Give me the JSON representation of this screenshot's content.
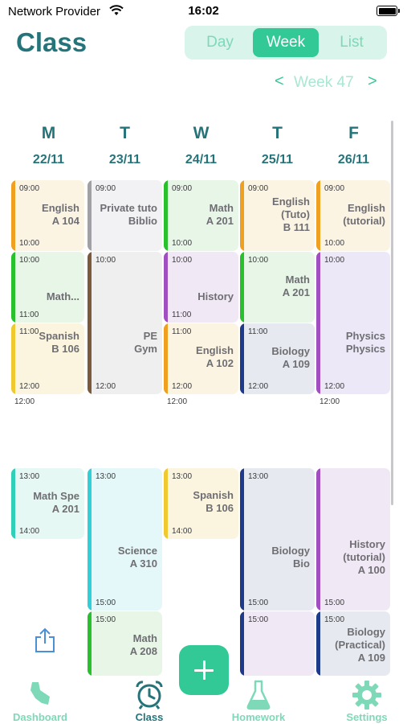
{
  "status": {
    "carrier": "Network Provider",
    "time": "16:02"
  },
  "header": {
    "title": "Class"
  },
  "segments": [
    {
      "label": "Day"
    },
    {
      "label": "Week"
    },
    {
      "label": "List"
    }
  ],
  "week_nav": {
    "prev": "<",
    "label": "Week 47",
    "next": ">"
  },
  "days": [
    {
      "letter": "M",
      "date": "22/11"
    },
    {
      "letter": "T",
      "date": "23/11"
    },
    {
      "letter": "W",
      "date": "24/11"
    },
    {
      "letter": "T",
      "date": "25/11"
    },
    {
      "letter": "F",
      "date": "26/11"
    }
  ],
  "events": [
    {
      "start": "09:00",
      "end": "10:00",
      "name": "English",
      "room": "A 104"
    },
    {
      "start": "10:00",
      "end": "11:00",
      "name": "Math...",
      "room": ""
    },
    {
      "start": "11:00",
      "end": "12:00",
      "name": "Spanish",
      "room": "B 106"
    },
    {
      "start": "13:00",
      "end": "14:00",
      "name": "Math Spe",
      "room": "A 201"
    },
    {
      "start": "09:00",
      "end": "",
      "name": "Private tuto",
      "room": "Biblio"
    },
    {
      "start": "10:00",
      "end": "12:00",
      "name": "PE",
      "room": "Gym"
    },
    {
      "start": "13:00",
      "end": "15:00",
      "name": "Science",
      "room": "A 310"
    },
    {
      "start": "15:00",
      "end": "",
      "name": "Math",
      "room": "A 208"
    },
    {
      "start": "09:00",
      "end": "10:00",
      "name": "Math",
      "room": "A 201"
    },
    {
      "start": "10:00",
      "end": "11:00",
      "name": "History",
      "room": ""
    },
    {
      "start": "11:00",
      "end": "12:00",
      "name": "English",
      "room": "A 102"
    },
    {
      "start": "13:00",
      "end": "14:00",
      "name": "Spanish",
      "room": "B 106"
    },
    {
      "start": "09:00",
      "end": "",
      "name": "English",
      "name2": "(Tuto)",
      "room": "B 111"
    },
    {
      "start": "10:00",
      "end": "",
      "name": "Math",
      "room": "A 201"
    },
    {
      "start": "11:00",
      "end": "12:00",
      "name": "Biology",
      "room": "A 109"
    },
    {
      "start": "13:00",
      "end": "15:00",
      "name": "Biology",
      "room": "Bio"
    },
    {
      "start": "15:00",
      "end": "",
      "name": "",
      "room": ""
    },
    {
      "start": "09:00",
      "end": "10:00",
      "name": "English",
      "room": "(tutorial)"
    },
    {
      "start": "10:00",
      "end": "12:00",
      "name": "Physics",
      "room": "Physics"
    },
    {
      "start": "",
      "end": "15:00",
      "name": "History",
      "name2": "(tutorial)",
      "room": "A 100"
    },
    {
      "start": "15:00",
      "end": "",
      "name": "Biology",
      "name2": "(Practical)",
      "room": "A 109"
    }
  ],
  "gap_labels": [
    "12:00",
    "12:00",
    "12:00"
  ],
  "tabs": [
    {
      "label": "Dashboard"
    },
    {
      "label": "Class"
    },
    {
      "label": "Homework"
    },
    {
      "label": "Settings"
    }
  ],
  "colors": {
    "accent": "#33c997",
    "title": "#25747a",
    "english": "#f0a020",
    "math": "#28c02c",
    "spanish": "#f0c830",
    "gray": "#a0a0a5",
    "brown": "#7a5a3a",
    "science": "#30d0d8",
    "history": "#a04ec0",
    "biology": "#1e3a8a"
  },
  "icons": {
    "share": "share-icon",
    "add": "plus-icon",
    "dashboard": "dashboard-icon",
    "class": "alarm-clock-icon",
    "homework": "flask-icon",
    "settings": "gear-icon"
  }
}
